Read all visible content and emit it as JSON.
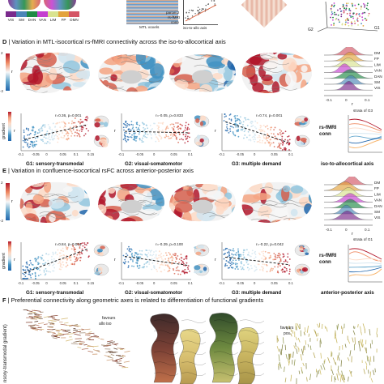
{
  "top_strip": {
    "networks": [
      "VIS",
      "SM",
      "DAN",
      "VAN",
      "LIM",
      "FP",
      "DMN"
    ],
    "network_colors": [
      "#7a2a8c",
      "#4b86b8",
      "#1f8a45",
      "#c53fd0",
      "#d9e38f",
      "#e3a33c",
      "#d45565"
    ],
    "mtl_voxels_label": "MTL voxels",
    "parcel_label": "parcel 2",
    "rsfmri_label": "rs-fMRI",
    "conn_label": "conn",
    "iso_axis_label": "iso-to-allo axis",
    "g1_label": "G1",
    "g2_label": "G2"
  },
  "panel_d": {
    "letter": "D",
    "title": "Variation in MTL-isocortical rs-fMRI connectivity across the iso-to-allocortical axis",
    "colorbar_high": "2",
    "colorbar_low": "-2",
    "colorbar_label": "r",
    "gradient_label": "gradient",
    "r_axis_label": "r",
    "ridge_labels": [
      "DM",
      "FP",
      "LIM",
      "VAN",
      "DAN",
      "SM",
      "VIS"
    ],
    "ridge_ticks": [
      "-0.1",
      "0",
      "0.1"
    ],
    "ridge_xlabel": "r",
    "scatter": [
      {
        "stat": "r=0.36, p=0.001",
        "xlabel": "G1: sensory-transmodal",
        "ticks": [
          "-0.1",
          "-0.05",
          "0",
          "0.05",
          "0.1",
          "0.15"
        ]
      },
      {
        "stat": "r=-0.05, p=0.833",
        "xlabel": "G2: visual-somatomotor",
        "ticks": [
          "-0.1",
          "-0.05",
          "0",
          "0.05",
          "0.1"
        ]
      },
      {
        "stat": "r=0.74, p=0.001",
        "xlabel": "G3: multiple demand",
        "ticks": [
          "-0.1",
          "-0.05",
          "0",
          "0.05",
          "0.1"
        ]
      }
    ],
    "strata_label": "strata of G3",
    "conn_label": "rs-fMRI\nconn",
    "conn_xlabel": "iso-to-allocortical axis"
  },
  "panel_e": {
    "letter": "E",
    "title": "Variation in confluence-isocortical rsFC across anterior-posterior axis",
    "colorbar_high": "2",
    "colorbar_low": "-2",
    "colorbar_label": "r",
    "gradient_label": "gradient",
    "r_axis_label": "r",
    "ridge_labels": [
      "DM",
      "FP",
      "LIM",
      "VAN",
      "DAN",
      "SM",
      "VIS"
    ],
    "ridge_ticks": [
      "-0.1",
      "0",
      "0.1"
    ],
    "ridge_xlabel": "r",
    "scatter": [
      {
        "stat": "r=0.84, p=0.001",
        "xlabel": "G1: sensory-transmodal",
        "ticks": [
          "-0.1",
          "-0.05",
          "0",
          "0.05",
          "0.1",
          "0.15"
        ]
      },
      {
        "stat": "r=-0.29, p=0.100",
        "xlabel": "G2: visual-somatomotor",
        "ticks": [
          "-0.1",
          "-0.05",
          "0",
          "0.05",
          "0.1"
        ]
      },
      {
        "stat": "r=-0.22, p=0.042",
        "xlabel": "G3: multiple demand",
        "ticks": [
          "-0.1",
          "-0.05",
          "0",
          "0.05",
          "0.1"
        ]
      }
    ],
    "strata_label": "strata of G1",
    "conn_label": "rs-fMRI\nconn",
    "conn_xlabel": "anterior-posterior axis"
  },
  "panel_f": {
    "letter": "F",
    "title": "Preferential connectivity along geometric axes is related to differentiation of functional gradients",
    "ylabel": "nsory-transmodal gradient)",
    "favours_left": "favours",
    "favours_left_sub": "allo  iso",
    "favours_right": "favours",
    "favours_right_sub": "pos."
  }
}
